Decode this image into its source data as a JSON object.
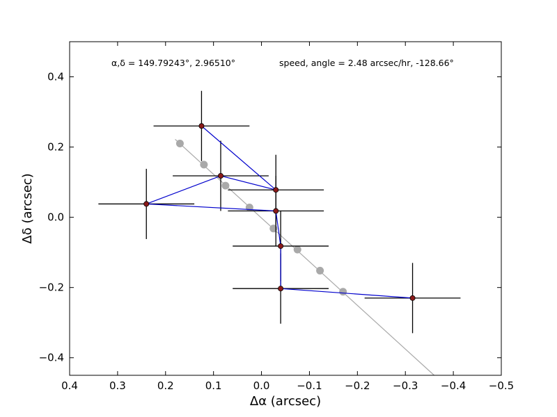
{
  "chart_data": {
    "type": "scatter",
    "title": "",
    "xlabel": "Δα (arcsec)",
    "ylabel": "Δδ (arcsec)",
    "xlim": [
      0.4,
      -0.5
    ],
    "ylim": [
      -0.45,
      0.5
    ],
    "x_reversed": true,
    "xticks": [
      0.4,
      0.3,
      0.2,
      0.1,
      0.0,
      -0.1,
      -0.2,
      -0.3,
      -0.4,
      -0.5
    ],
    "xtick_labels": [
      "0.4",
      "0.3",
      "0.2",
      "0.1",
      "0.0",
      "−0.1",
      "−0.2",
      "−0.3",
      "−0.4",
      "−0.5"
    ],
    "yticks": [
      -0.4,
      -0.2,
      0.0,
      0.2,
      0.4
    ],
    "ytick_labels": [
      "−0.4",
      "−0.2",
      "0.0",
      "0.2",
      "0.4"
    ],
    "grid": false,
    "legend": "none",
    "annotations": {
      "position": "α,δ = 149.79243°, 2.96510°",
      "motion": "speed, angle = 2.48 arcsec/hr, -128.66°"
    },
    "colors": {
      "observed_fill": "#8b1a1a",
      "observed_path": "#0000cc",
      "error_bar": "#000000",
      "model_points": "#a9a9a9",
      "model_line": "#a9a9a9"
    },
    "series": [
      {
        "role": "observed",
        "points": [
          {
            "x": 0.125,
            "y": 0.26,
            "xerr": 0.1,
            "yerr": 0.1
          },
          {
            "x": -0.03,
            "y": 0.078,
            "xerr": 0.1,
            "yerr": 0.1
          },
          {
            "x": 0.085,
            "y": 0.118,
            "xerr": 0.1,
            "yerr": 0.1
          },
          {
            "x": 0.24,
            "y": 0.038,
            "xerr": 0.1,
            "yerr": 0.1
          },
          {
            "x": -0.03,
            "y": 0.018,
            "xerr": 0.1,
            "yerr": 0.1
          },
          {
            "x": -0.04,
            "y": -0.082,
            "xerr": 0.1,
            "yerr": 0.1
          },
          {
            "x": -0.04,
            "y": -0.203,
            "xerr": 0.1,
            "yerr": 0.1
          },
          {
            "x": -0.315,
            "y": -0.23,
            "xerr": 0.1,
            "yerr": 0.1
          }
        ]
      },
      {
        "role": "model",
        "points": [
          {
            "x": 0.17,
            "y": 0.21
          },
          {
            "x": 0.12,
            "y": 0.15
          },
          {
            "x": 0.075,
            "y": 0.09
          },
          {
            "x": 0.025,
            "y": 0.028
          },
          {
            "x": -0.025,
            "y": -0.032
          },
          {
            "x": -0.075,
            "y": -0.092
          },
          {
            "x": -0.122,
            "y": -0.152
          },
          {
            "x": -0.17,
            "y": -0.212
          }
        ],
        "line": {
          "x1": 0.18,
          "y1": 0.222,
          "x2": -0.36,
          "y2": -0.45
        }
      }
    ]
  }
}
